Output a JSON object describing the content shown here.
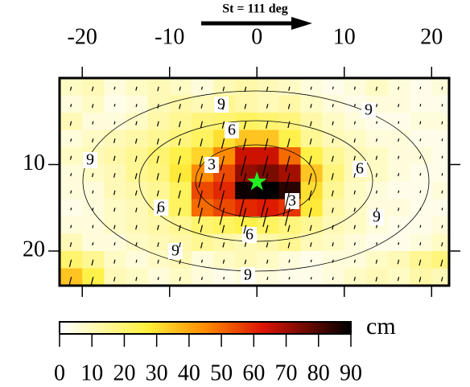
{
  "chart_data": {
    "type": "heatmap",
    "title": "St = 111 deg",
    "x": [
      -21.25,
      -18.75,
      -16.25,
      -13.75,
      -11.25,
      -8.75,
      -6.25,
      -3.75,
      -1.25,
      1.25,
      3.75,
      6.25,
      8.75,
      11.25,
      13.75,
      16.25,
      18.75,
      21.25
    ],
    "y": [
      1,
      3,
      5,
      7,
      9,
      11,
      13,
      15,
      17,
      19,
      21,
      23
    ],
    "values": [
      [
        8,
        10,
        5,
        8,
        10,
        8,
        5,
        10,
        12,
        10,
        8,
        5,
        3,
        5,
        8,
        5,
        3,
        5
      ],
      [
        5,
        8,
        3,
        5,
        10,
        12,
        10,
        15,
        12,
        10,
        12,
        8,
        5,
        3,
        5,
        5,
        3,
        3
      ],
      [
        10,
        5,
        5,
        8,
        12,
        15,
        18,
        20,
        22,
        20,
        18,
        12,
        8,
        5,
        3,
        3,
        5,
        5
      ],
      [
        5,
        8,
        10,
        12,
        15,
        18,
        22,
        30,
        35,
        35,
        25,
        15,
        10,
        8,
        5,
        5,
        3,
        3
      ],
      [
        8,
        10,
        12,
        15,
        20,
        25,
        32,
        45,
        65,
        65,
        50,
        25,
        15,
        10,
        8,
        5,
        5,
        3
      ],
      [
        5,
        8,
        10,
        15,
        18,
        28,
        45,
        55,
        72,
        75,
        70,
        35,
        18,
        10,
        8,
        5,
        3,
        3
      ],
      [
        5,
        5,
        10,
        12,
        15,
        22,
        55,
        60,
        88,
        90,
        85,
        30,
        15,
        8,
        5,
        3,
        3,
        5
      ],
      [
        3,
        5,
        8,
        10,
        15,
        22,
        50,
        55,
        60,
        62,
        58,
        28,
        12,
        8,
        5,
        5,
        3,
        3
      ],
      [
        5,
        5,
        8,
        10,
        12,
        15,
        20,
        22,
        25,
        22,
        18,
        15,
        10,
        8,
        5,
        3,
        3,
        5
      ],
      [
        10,
        5,
        5,
        8,
        10,
        12,
        15,
        12,
        10,
        12,
        15,
        10,
        8,
        5,
        3,
        3,
        5,
        8
      ],
      [
        20,
        15,
        8,
        5,
        8,
        10,
        5,
        8,
        10,
        8,
        5,
        3,
        5,
        5,
        8,
        10,
        15,
        18
      ],
      [
        35,
        25,
        10,
        8,
        5,
        8,
        5,
        3,
        5,
        5,
        3,
        3,
        5,
        8,
        10,
        8,
        12,
        10
      ]
    ],
    "xlim": [
      -22.6,
      22
    ],
    "ylim": [
      0,
      24
    ],
    "xticks": [
      -20,
      -10,
      0,
      10,
      20
    ],
    "yticks": [
      10,
      20
    ],
    "contour_levels": [
      3,
      6,
      9
    ],
    "epicenter": [
      0,
      12
    ],
    "epicenter_color": "#22ee22",
    "colorbar": {
      "label": "cm",
      "lim": [
        0,
        90
      ],
      "ticks": [
        0,
        10,
        20,
        30,
        40,
        50,
        60,
        70,
        80,
        90
      ]
    }
  }
}
